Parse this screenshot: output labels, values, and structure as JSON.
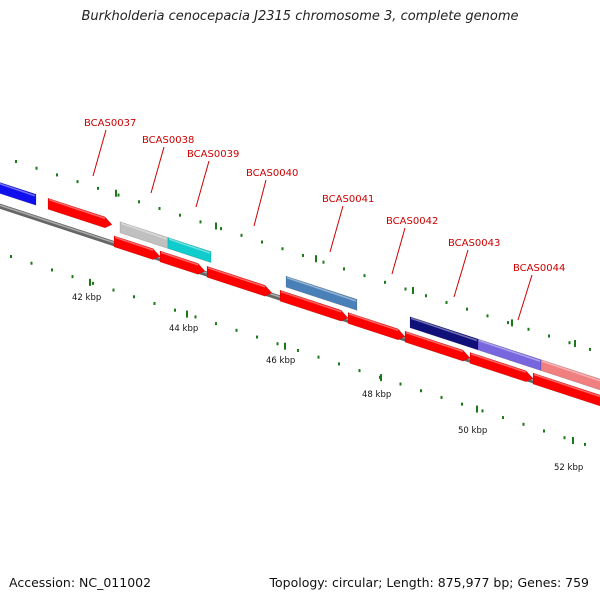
{
  "title": "Burkholderia cenocepacia J2315 chromosome 3, complete genome",
  "footer": {
    "accession": "Accession: NC_011002",
    "stats": "Topology: circular; Length: 875,977 bp; Genes: 759"
  },
  "colors": {
    "backbone": "#777777",
    "forward_strand": "#ff0000",
    "reverse_strand": "#ff0000",
    "tick": "#1a7a1a",
    "label": "#cc0000"
  },
  "scale_labels": [
    {
      "kbp": 42,
      "text": "42 kbp"
    },
    {
      "kbp": 44,
      "text": "44 kbp"
    },
    {
      "kbp": 46,
      "text": "46 kbp"
    },
    {
      "kbp": 48,
      "text": "48 kbp"
    },
    {
      "kbp": 50,
      "text": "50 kbp"
    },
    {
      "kbp": 52,
      "text": "52 kbp"
    }
  ],
  "genes": [
    {
      "id": "g-blue-left",
      "label": "",
      "color": "#1010ee",
      "track": "outer"
    },
    {
      "id": "g1",
      "label": "",
      "color": "#ff0000",
      "track": "outer"
    },
    {
      "id": "g-grey",
      "label": "",
      "color": "#c0c0c0",
      "track": "outer"
    },
    {
      "id": "g-cyan",
      "label": "",
      "color": "#11cccc",
      "track": "outer"
    },
    {
      "id": "g-steel",
      "label": "",
      "color": "#4a80b8",
      "track": "outer"
    },
    {
      "id": "g-navy",
      "label": "",
      "color": "#10107a",
      "track": "outer"
    },
    {
      "id": "g-violet",
      "label": "",
      "color": "#7766dd",
      "track": "outer"
    },
    {
      "id": "g-pink",
      "label": "",
      "color": "#f08080",
      "track": "outer"
    }
  ],
  "gene_labels": [
    {
      "text": "BCAS0037"
    },
    {
      "text": "BCAS0038"
    },
    {
      "text": "BCAS0039"
    },
    {
      "text": "BCAS0040"
    },
    {
      "text": "BCAS0041"
    },
    {
      "text": "BCAS0042"
    },
    {
      "text": "BCAS0043"
    },
    {
      "text": "BCAS0044"
    }
  ]
}
